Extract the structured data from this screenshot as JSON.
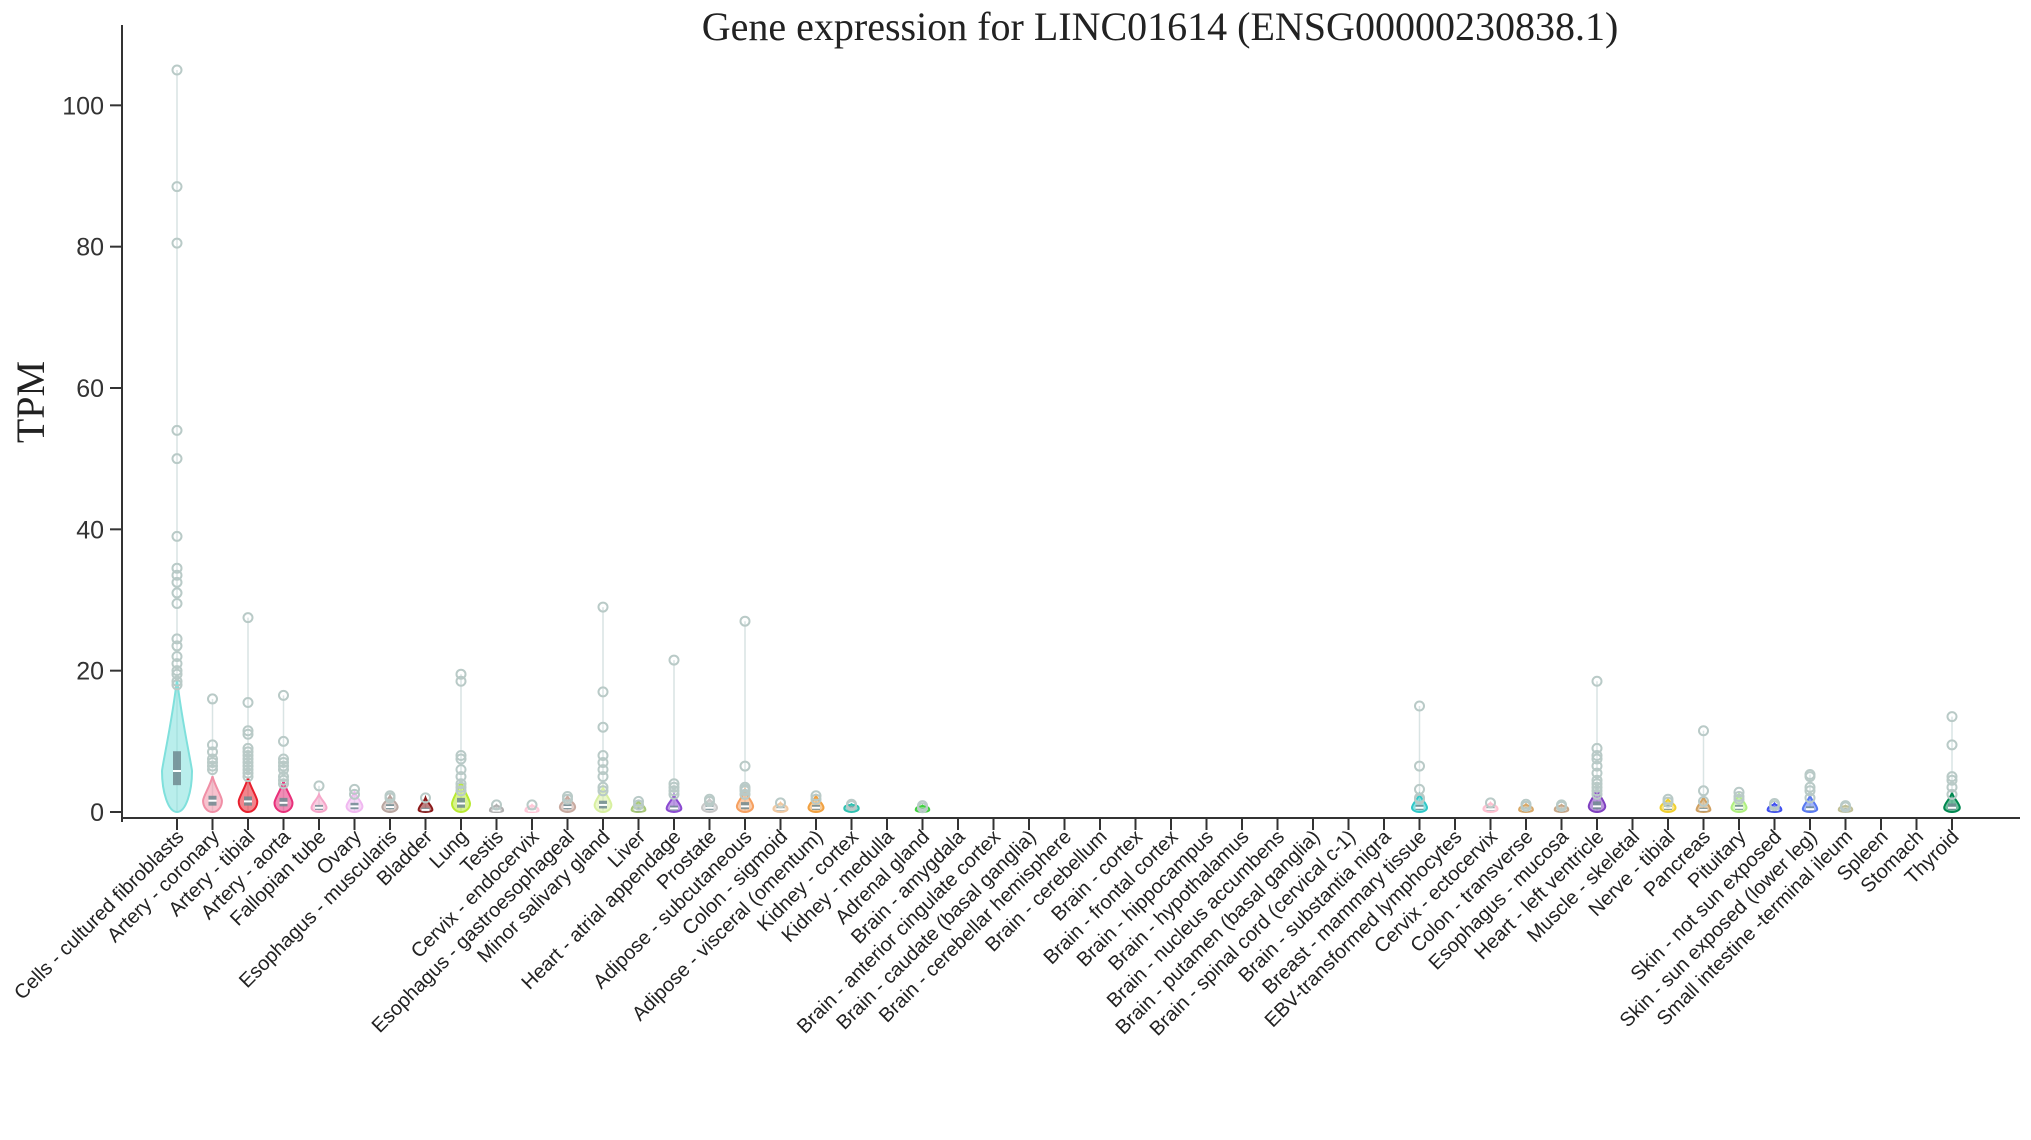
{
  "chart_data": {
    "type": "violin",
    "title": "Gene expression for LINC01614 (ENSG00000230838.1)",
    "xlabel": "",
    "ylabel": "TPM",
    "ylim": [
      0,
      105
    ],
    "yticks": [
      0,
      20,
      40,
      60,
      80,
      100
    ],
    "grid": false,
    "legend": "none",
    "categories": [
      "Cells - cultured fibroblasts",
      "Artery - coronary",
      "Artery - tibial",
      "Artery - aorta",
      "Fallopian tube",
      "Ovary",
      "Esophagus - muscularis",
      "Bladder",
      "Lung",
      "Testis",
      "Cervix - endocervix",
      "Esophagus - gastroesophageal",
      "Minor salivary gland",
      "Liver",
      "Heart - atrial appendage",
      "Prostate",
      "Adipose - subcutaneous",
      "Colon - sigmoid",
      "Adipose - visceral (omentum)",
      "Kidney - cortex",
      "Kidney - medulla",
      "Adrenal gland",
      "Brain - amygdala",
      "Brain - anterior cingulate cortex",
      "Brain - caudate (basal ganglia)",
      "Brain - cerebellar hemisphere",
      "Brain - cerebellum",
      "Brain - cortex",
      "Brain - frontal cortex",
      "Brain - hippocampus",
      "Brain - hypothalamus",
      "Brain - nucleus accumbens",
      "Brain - putamen (basal ganglia)",
      "Brain - spinal cord (cervical c-1)",
      "Brain - substantia nigra",
      "Breast - mammary tissue",
      "EBV-transformed lymphocytes",
      "Cervix - ectocervix",
      "Colon - transverse",
      "Esophagus - mucosa",
      "Heart - left ventricle",
      "Muscle - skeletal",
      "Nerve - tibial",
      "Pancreas",
      "Pituitary",
      "Skin - not sun exposed",
      "Skin - sun exposed (lower leg)",
      "Small intestine -terminal ileum",
      "Spleen",
      "Stomach",
      "Thyroid"
    ],
    "colors": [
      "#7fe0dc",
      "#f08fa6",
      "#e8202e",
      "#e8307a",
      "#f6a6c9",
      "#f0b8f0",
      "#b9a6a0",
      "#8b1a1a",
      "#b8ea30",
      "#b0b0b0",
      "#ffc8d8",
      "#c8aaa0",
      "#d8f0a0",
      "#a8c878",
      "#8a4ad0",
      "#c8c8c8",
      "#f6a060",
      "#f0c8a0",
      "#f0a040",
      "#30c0b0",
      "#60d0c0",
      "#40d040",
      "#e8e838",
      "#e8e838",
      "#e8e838",
      "#e8e838",
      "#e8e838",
      "#e8e838",
      "#e8e838",
      "#e8e838",
      "#e8e838",
      "#e8e838",
      "#e8e838",
      "#e8e838",
      "#e8e838",
      "#30c8c8",
      "#d080e0",
      "#ffc0d0",
      "#d8a868",
      "#c8a888",
      "#8040c0",
      "#a898f0",
      "#f0d030",
      "#d0a060",
      "#b0f080",
      "#4050f0",
      "#5878f0",
      "#c0c098",
      "#c0d078",
      "#e8d890",
      "#008850"
    ],
    "series": [
      {
        "median": 5.8,
        "q1": 3.8,
        "q3": 8.6,
        "max": 105,
        "outliers": [
          105,
          88.5,
          80.5,
          54,
          50,
          39,
          34.5,
          33.5,
          32.5,
          31,
          29.5,
          24.5,
          23.5,
          22,
          21,
          20,
          19.5,
          18.5,
          18
        ]
      },
      {
        "median": 1.6,
        "q1": 0.9,
        "q3": 2.3,
        "max": 16,
        "outliers": [
          16,
          9.5,
          8.5,
          7.5,
          7,
          6.5,
          6
        ]
      },
      {
        "median": 1.5,
        "q1": 0.9,
        "q3": 2.2,
        "max": 27.5,
        "outliers": [
          27.5,
          15.5,
          11.5,
          11,
          9,
          8.5,
          8,
          7.5,
          7,
          6.5,
          6,
          5.5,
          5
        ]
      },
      {
        "median": 1.3,
        "q1": 0.8,
        "q3": 2.0,
        "max": 16.5,
        "outliers": [
          16.5,
          10,
          7.5,
          7,
          6.5,
          6,
          5,
          4.5,
          4
        ]
      },
      {
        "median": 0.6,
        "q1": 0.3,
        "q3": 1.0,
        "max": 3.7,
        "outliers": [
          3.7
        ]
      },
      {
        "median": 0.8,
        "q1": 0.4,
        "q3": 1.3,
        "max": 3.2,
        "outliers": [
          3.2,
          2.5
        ]
      },
      {
        "median": 0.7,
        "q1": 0.4,
        "q3": 1.1,
        "max": 2.3,
        "outliers": [
          2.3,
          2.0
        ]
      },
      {
        "median": 0.3,
        "q1": 0.1,
        "q3": 0.6,
        "max": 2.0,
        "outliers": [
          2.0
        ]
      },
      {
        "median": 1.2,
        "q1": 0.6,
        "q3": 2.0,
        "max": 19.5,
        "outliers": [
          19.5,
          18.5,
          8,
          7.5,
          6,
          5,
          4,
          3.5,
          3
        ]
      },
      {
        "median": 0.2,
        "q1": 0.1,
        "q3": 0.4,
        "max": 1.0,
        "outliers": [
          1.0
        ]
      },
      {
        "median": 0.2,
        "q1": 0.1,
        "q3": 0.4,
        "max": 1.0,
        "outliers": [
          1.0
        ]
      },
      {
        "median": 0.7,
        "q1": 0.4,
        "q3": 1.1,
        "max": 2.2,
        "outliers": [
          2.2,
          1.8
        ]
      },
      {
        "median": 1.0,
        "q1": 0.5,
        "q3": 1.6,
        "max": 29,
        "outliers": [
          29,
          17,
          12,
          8,
          7,
          6,
          5,
          3.5,
          3
        ]
      },
      {
        "median": 0.3,
        "q1": 0.1,
        "q3": 0.6,
        "max": 1.5,
        "outliers": [
          1.5,
          1.0
        ]
      },
      {
        "median": 0.5,
        "q1": 0.2,
        "q3": 0.9,
        "max": 21.5,
        "outliers": [
          21.5,
          4,
          3.5,
          3,
          2.5
        ]
      },
      {
        "median": 0.6,
        "q1": 0.3,
        "q3": 1.0,
        "max": 1.8,
        "outliers": [
          1.8,
          1.5
        ]
      },
      {
        "median": 0.8,
        "q1": 0.4,
        "q3": 1.4,
        "max": 27,
        "outliers": [
          27,
          6.5,
          3.5,
          3.2,
          3,
          2.5
        ]
      },
      {
        "median": 0.4,
        "q1": 0.2,
        "q3": 0.7,
        "max": 1.3,
        "outliers": [
          1.3
        ]
      },
      {
        "median": 0.6,
        "q1": 0.3,
        "q3": 1.0,
        "max": 2.3,
        "outliers": [
          2.3,
          1.8
        ]
      },
      {
        "median": 0.5,
        "q1": 0.3,
        "q3": 0.8,
        "max": 1.1,
        "outliers": [
          1.1,
          0.9
        ]
      },
      {
        "median": 0,
        "q1": 0,
        "q3": 0,
        "max": 0,
        "outliers": []
      },
      {
        "median": 0.3,
        "q1": 0.1,
        "q3": 0.5,
        "max": 0.9,
        "outliers": [
          0.9,
          0.6
        ]
      },
      {
        "median": 0,
        "q1": 0,
        "q3": 0,
        "max": 0,
        "outliers": []
      },
      {
        "median": 0,
        "q1": 0,
        "q3": 0,
        "max": 0,
        "outliers": []
      },
      {
        "median": 0,
        "q1": 0,
        "q3": 0,
        "max": 0,
        "outliers": []
      },
      {
        "median": 0,
        "q1": 0,
        "q3": 0,
        "max": 0,
        "outliers": []
      },
      {
        "median": 0,
        "q1": 0,
        "q3": 0,
        "max": 0,
        "outliers": []
      },
      {
        "median": 0,
        "q1": 0,
        "q3": 0,
        "max": 0,
        "outliers": []
      },
      {
        "median": 0,
        "q1": 0,
        "q3": 0,
        "max": 0,
        "outliers": []
      },
      {
        "median": 0,
        "q1": 0,
        "q3": 0,
        "max": 0,
        "outliers": []
      },
      {
        "median": 0,
        "q1": 0,
        "q3": 0,
        "max": 0,
        "outliers": []
      },
      {
        "median": 0,
        "q1": 0,
        "q3": 0,
        "max": 0,
        "outliers": []
      },
      {
        "median": 0,
        "q1": 0,
        "q3": 0,
        "max": 0,
        "outliers": []
      },
      {
        "median": 0,
        "q1": 0,
        "q3": 0,
        "max": 0,
        "outliers": []
      },
      {
        "median": 0,
        "q1": 0,
        "q3": 0,
        "max": 0,
        "outliers": []
      },
      {
        "median": 0.6,
        "q1": 0.3,
        "q3": 1.0,
        "max": 15,
        "outliers": [
          15,
          6.5,
          3.2,
          2,
          1.8
        ]
      },
      {
        "median": 0,
        "q1": 0,
        "q3": 0,
        "max": 0,
        "outliers": []
      },
      {
        "median": 0.4,
        "q1": 0.2,
        "q3": 0.7,
        "max": 1.3,
        "outliers": [
          1.3
        ]
      },
      {
        "median": 0.3,
        "q1": 0.1,
        "q3": 0.6,
        "max": 1.1,
        "outliers": [
          1.1,
          0.8
        ]
      },
      {
        "median": 0.3,
        "q1": 0.1,
        "q3": 0.5,
        "max": 1.0,
        "outliers": [
          1.0,
          0.8
        ]
      },
      {
        "median": 0.8,
        "q1": 0.4,
        "q3": 1.5,
        "max": 18.5,
        "outliers": [
          18.5,
          9,
          8,
          7.5,
          6.5,
          5.5,
          4.5,
          4,
          3.5,
          3,
          2.5
        ]
      },
      {
        "median": 0,
        "q1": 0,
        "q3": 0,
        "max": 0,
        "outliers": []
      },
      {
        "median": 0.6,
        "q1": 0.3,
        "q3": 1.0,
        "max": 1.8,
        "outliers": [
          1.8,
          1.4
        ]
      },
      {
        "median": 0.3,
        "q1": 0.1,
        "q3": 0.6,
        "max": 11.5,
        "outliers": [
          11.5,
          3,
          1.5
        ]
      },
      {
        "median": 0.6,
        "q1": 0.3,
        "q3": 1.0,
        "max": 2.8,
        "outliers": [
          2.8,
          2.2,
          1.8
        ]
      },
      {
        "median": 0.3,
        "q1": 0.1,
        "q3": 0.6,
        "max": 1.2,
        "outliers": [
          1.2,
          0.9
        ]
      },
      {
        "median": 0.4,
        "q1": 0.2,
        "q3": 0.8,
        "max": 5.3,
        "outliers": [
          5.3,
          5,
          3.5,
          3,
          2
        ]
      },
      {
        "median": 0.3,
        "q1": 0.1,
        "q3": 0.5,
        "max": 0.9,
        "outliers": [
          0.9,
          0.7
        ]
      },
      {
        "median": 0,
        "q1": 0,
        "q3": 0,
        "max": 0,
        "outliers": []
      },
      {
        "median": 0,
        "q1": 0,
        "q3": 0,
        "max": 0,
        "outliers": []
      },
      {
        "median": 0.6,
        "q1": 0.3,
        "q3": 1.2,
        "max": 13.5,
        "outliers": [
          13.5,
          9.5,
          5,
          4.5,
          3.5,
          2.5
        ]
      }
    ]
  }
}
